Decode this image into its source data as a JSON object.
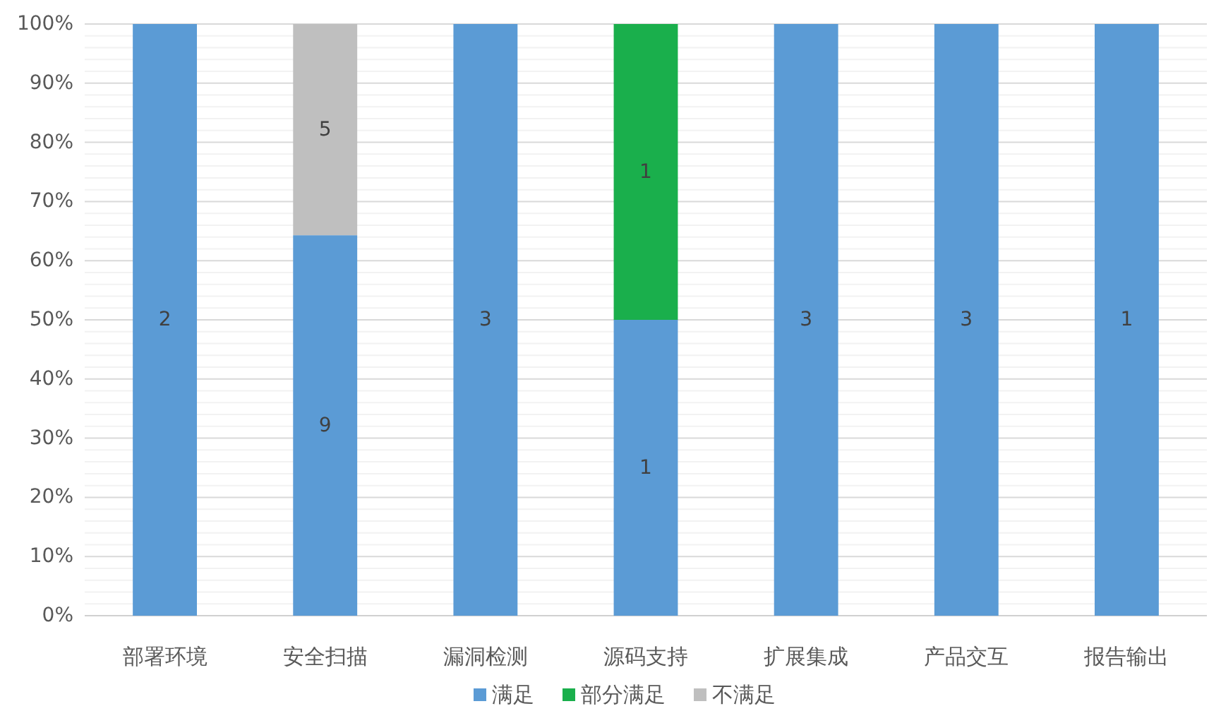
{
  "chart_data": {
    "type": "bar",
    "stacked": true,
    "categories": [
      "部署环境",
      "安全扫描",
      "漏洞检测",
      "源码支持",
      "扩展集成",
      "产品交互",
      "报告输出"
    ],
    "series": [
      {
        "name": "满足",
        "color": "#5b9bd5",
        "values": [
          100,
          64.3,
          100,
          50,
          100,
          100,
          100
        ]
      },
      {
        "name": "部分满足",
        "color": "#1aaf4c",
        "values": [
          null,
          null,
          null,
          50,
          null,
          null,
          null
        ]
      },
      {
        "name": "不满足",
        "color": "#bfbfbf",
        "values": [
          null,
          35.7,
          null,
          null,
          null,
          null,
          null
        ]
      }
    ],
    "annotations": [
      "2",
      "9",
      "5",
      "3",
      "1",
      "1",
      "3",
      "3",
      "1"
    ],
    "ylim": [
      0,
      100
    ],
    "yticks": [
      {
        "value": 0,
        "label": "0%"
      },
      {
        "value": 2,
        "label": null
      },
      {
        "value": 4,
        "label": null
      },
      {
        "value": 6,
        "label": null
      },
      {
        "value": 8,
        "label": null
      },
      {
        "value": 10,
        "label": "10%"
      },
      {
        "value": 12,
        "label": null
      },
      {
        "value": 14,
        "label": null
      },
      {
        "value": 16,
        "label": null
      },
      {
        "value": 18,
        "label": null
      },
      {
        "value": 20,
        "label": "20%"
      },
      {
        "value": 22,
        "label": null
      },
      {
        "value": 24,
        "label": null
      },
      {
        "value": 26,
        "label": null
      },
      {
        "value": 28,
        "label": null
      },
      {
        "value": 30,
        "label": "30%"
      },
      {
        "value": 32,
        "label": null
      },
      {
        "value": 34,
        "label": null
      },
      {
        "value": 36,
        "label": null
      },
      {
        "value": 38,
        "label": null
      },
      {
        "value": 40,
        "label": "40%"
      },
      {
        "value": 42,
        "label": null
      },
      {
        "value": 44,
        "label": null
      },
      {
        "value": 46,
        "label": null
      },
      {
        "value": 48,
        "label": null
      },
      {
        "value": 50,
        "label": "50%"
      },
      {
        "value": 52,
        "label": null
      },
      {
        "value": 54,
        "label": null
      },
      {
        "value": 56,
        "label": null
      },
      {
        "value": 58,
        "label": null
      },
      {
        "value": 60,
        "label": "60%"
      },
      {
        "value": 62,
        "label": null
      },
      {
        "value": 64,
        "label": null
      },
      {
        "value": 66,
        "label": null
      },
      {
        "value": 68,
        "label": null
      },
      {
        "value": 70,
        "label": "70%"
      },
      {
        "value": 72,
        "label": null
      },
      {
        "value": 74,
        "label": null
      },
      {
        "value": 76,
        "label": null
      },
      {
        "value": 78,
        "label": null
      },
      {
        "value": 80,
        "label": "80%"
      },
      {
        "value": 82,
        "label": null
      },
      {
        "value": 84,
        "label": null
      },
      {
        "value": 86,
        "label": null
      },
      {
        "value": 88,
        "label": null
      },
      {
        "value": 90,
        "label": "90%"
      },
      {
        "value": 92,
        "label": null
      },
      {
        "value": 94,
        "label": null
      },
      {
        "value": 96,
        "label": null
      },
      {
        "value": 98,
        "label": null
      },
      {
        "value": 100,
        "label": "100%"
      }
    ],
    "grid": true,
    "legend": "bottom"
  }
}
